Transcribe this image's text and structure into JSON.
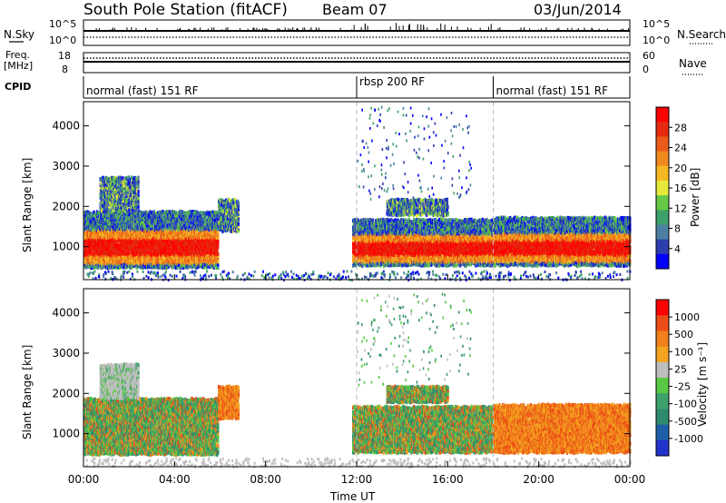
{
  "header": {
    "station": "South Pole Station (fitACF)",
    "beam": "Beam 07",
    "date": "03/Jun/2014"
  },
  "left_labels": {
    "nsky": "N.Sky",
    "freq": "Freq.",
    "freq_unit": "[MHz]",
    "cpid": "CPID"
  },
  "right_labels": {
    "nsearch": "N.Search",
    "nave": "Nave"
  },
  "nsky_axis": {
    "top": "10^5",
    "bottom": "10^0"
  },
  "freq_axis": {
    "left_top": "18",
    "left_bottom": "8",
    "right_top": "60",
    "right_bottom": "0"
  },
  "cpid_segments": [
    {
      "label": "normal (fast) 151 RF",
      "start_h": 0,
      "end_h": 12
    },
    {
      "label": "rbsp 200 RF",
      "start_h": 12,
      "end_h": 18
    },
    {
      "label": "normal (fast) 151 RF",
      "start_h": 18,
      "end_h": 24
    }
  ],
  "panels": {
    "power": {
      "ylabel": "Slant Range [km]",
      "colorbar_label": "Power [dB]",
      "colorbar_ticks": [
        "28",
        "24",
        "20",
        "16",
        "12",
        "8",
        "4"
      ],
      "colors": [
        "#0000ff",
        "#2d3fae",
        "#4d7fa2",
        "#3ea06a",
        "#66c845",
        "#e8e83a",
        "#f5b923",
        "#f08a1e",
        "#ea5a1a",
        "#e52a10",
        "#ff0000"
      ]
    },
    "velocity": {
      "ylabel": "Slant Range [km]",
      "colorbar_label": "Velocity [m s⁻¹]",
      "colorbar_ticks": [
        "1000",
        "500",
        "100",
        "25",
        "-25",
        "-100",
        "-500",
        "-1000"
      ],
      "colors": [
        "#2233cc",
        "#1f5fa8",
        "#2e8a6e",
        "#3ea06a",
        "#58c844",
        "#bebebe",
        "#f2a31f",
        "#f07f1c",
        "#ec4d18",
        "#ff0000"
      ]
    }
  },
  "chart_data": {
    "type": "heatmap",
    "x_axis": {
      "label": "Time UT",
      "ticks": [
        "00:00",
        "04:00",
        "08:00",
        "12:00",
        "16:00",
        "20:00",
        "00:00"
      ],
      "range_hours": [
        0,
        24
      ]
    },
    "y_axis": {
      "label": "Slant Range [km]",
      "ticks": [
        1000,
        2000,
        3000,
        4000
      ],
      "range": [
        180,
        4600
      ]
    },
    "mode_boundaries_h": [
      12,
      18
    ],
    "echo_regions": [
      {
        "t0": 0.0,
        "t1": 5.9,
        "r0": 500,
        "r1": 1900,
        "kind": "main"
      },
      {
        "t0": 0.7,
        "t1": 2.4,
        "r0": 1900,
        "r1": 2750,
        "kind": "upper"
      },
      {
        "t0": 5.9,
        "t1": 6.8,
        "r0": 1400,
        "r1": 2200,
        "kind": "patch"
      },
      {
        "t0": 11.8,
        "t1": 18.0,
        "r0": 550,
        "r1": 1700,
        "kind": "main"
      },
      {
        "t0": 13.3,
        "t1": 16.0,
        "r0": 1800,
        "r1": 2200,
        "kind": "upper"
      },
      {
        "t0": 18.0,
        "t1": 24.0,
        "r0": 550,
        "r1": 1750,
        "kind": "main"
      }
    ]
  },
  "xlabel": "Time UT"
}
